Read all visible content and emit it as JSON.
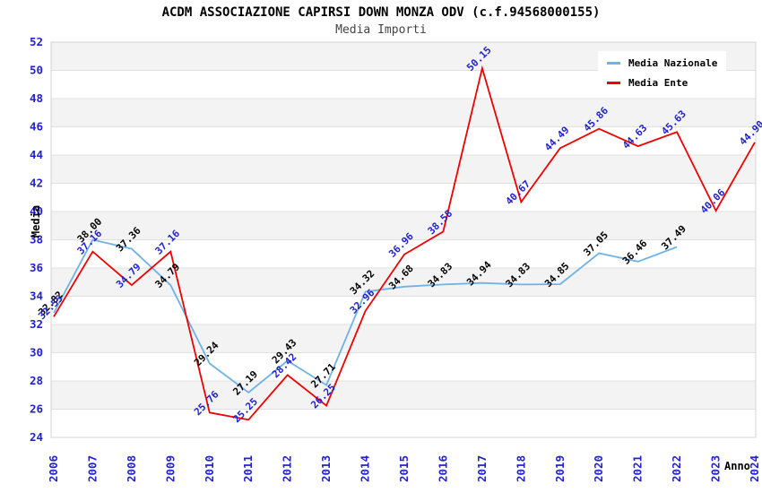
{
  "chart_data": {
    "type": "line",
    "title": "ACDM ASSOCIAZIONE CAPIRSI DOWN MONZA ODV (c.f.94568000155)",
    "subtitle": "Media Importi",
    "xlabel": "Anno",
    "ylabel": "Media",
    "ylim": [
      24,
      52
    ],
    "ytick_step": 2,
    "grid": true,
    "legend_position": "top-right",
    "categories": [
      "2006",
      "2007",
      "2008",
      "2009",
      "2010",
      "2011",
      "2012",
      "2013",
      "2014",
      "2015",
      "2016",
      "2017",
      "2018",
      "2019",
      "2020",
      "2021",
      "2022",
      "2023",
      "2024"
    ],
    "series": [
      {
        "name": "Media Nazionale",
        "color": "#6fb2e4",
        "label_color": "#000000",
        "values": [
          32.82,
          38.0,
          37.36,
          34.79,
          29.24,
          27.19,
          29.43,
          27.71,
          34.32,
          34.68,
          34.83,
          34.94,
          34.83,
          34.85,
          37.05,
          36.46,
          37.49,
          null,
          null
        ]
      },
      {
        "name": "Media Ente",
        "color": "#ee0000",
        "label_color": "#2222cc",
        "values": [
          32.55,
          37.16,
          34.79,
          37.16,
          25.76,
          25.25,
          28.42,
          26.25,
          32.96,
          36.96,
          38.58,
          50.15,
          40.67,
          44.49,
          45.86,
          44.63,
          45.63,
          40.06,
          44.9
        ]
      }
    ],
    "colors": {
      "axis_tick_label": "#2222cc",
      "gridline": "#e0e0e0",
      "band": "#f3f3f3",
      "plot_border": "#d4d4d4",
      "title_text": "#000000",
      "subtitle_text": "#444444"
    }
  }
}
